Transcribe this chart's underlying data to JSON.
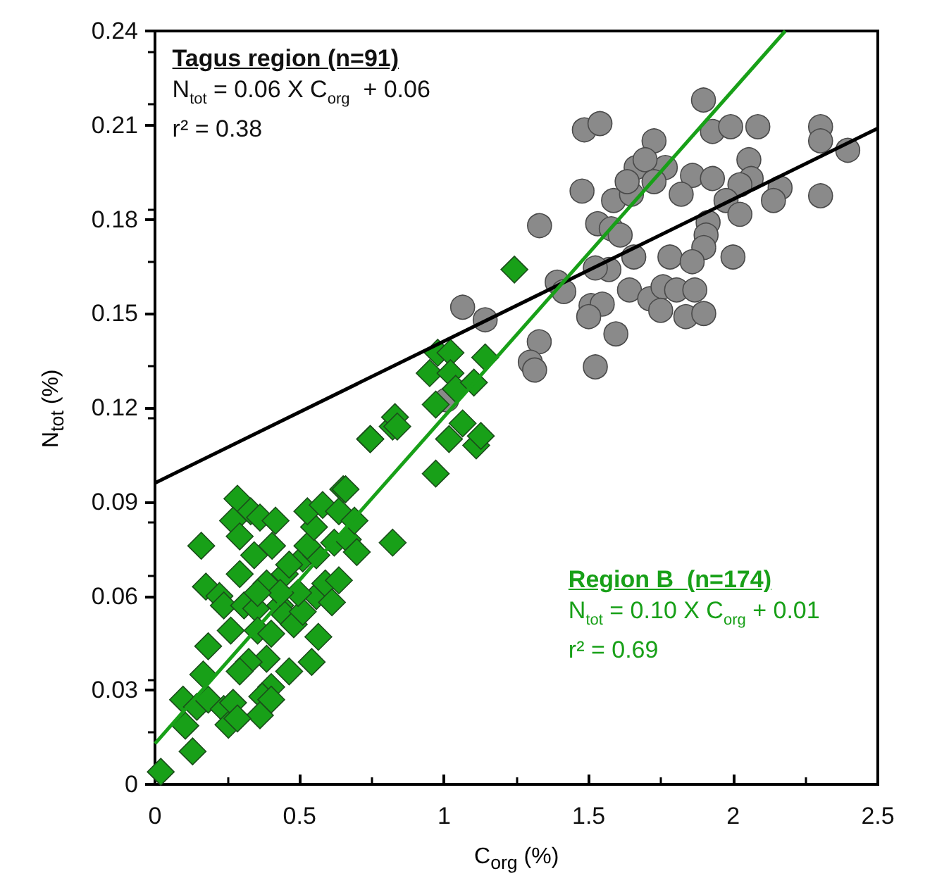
{
  "chart_data": {
    "type": "scatter",
    "xlabel": "C$_{org}$ (%)",
    "ylabel": "N$_{tot}$ (%)",
    "xlim": [
      0,
      2.5
    ],
    "xticks": [
      0,
      0.5,
      1,
      1.5,
      2,
      2.5
    ],
    "ylim": [
      0,
      0.24
    ],
    "yticks": [
      0,
      0.03,
      0.06,
      0.09,
      0.12,
      0.15,
      0.18,
      0.21,
      0.24
    ],
    "grid": false,
    "annotations": [
      "Tagus region (n=91)",
      "N$_{tot}$ = 0.06 X C$_{org}$  + 0.06",
      "r² = 0.38",
      "Region B  (n=174)",
      "N$_{tot}$ = 0.10 X C$_{org}$ + 0.01",
      "r² = 0.69"
    ],
    "series": [
      {
        "marker": "circle",
        "color": "#8a8a8a",
        "x": [
          1.33,
          1.391,
          1.064,
          1.142,
          1.329,
          1.298,
          1.313,
          1.009,
          1.897,
          1.485,
          1.539,
          1.928,
          1.991,
          2.085,
          2.302,
          2.302,
          2.396,
          1.726,
          1.664,
          1.765,
          1.695,
          1.477,
          1.586,
          1.648,
          1.633,
          1.726,
          1.859,
          1.928,
          2.054,
          2.062,
          2.023,
          2.162,
          2.139,
          1.975,
          2.302,
          1.82,
          1.531,
          1.578,
          1.609,
          2.023,
          1.913,
          1.906,
          1.898,
          1.781,
          1.858,
          1.999,
          1.656,
          1.57,
          1.523,
          1.414,
          1.641,
          1.711,
          1.757,
          1.804,
          1.867,
          1.749,
          1.836,
          1.898,
          1.508,
          1.547,
          1.5,
          1.594,
          1.523
        ],
        "values": [
          0.178,
          0.16,
          0.152,
          0.148,
          0.141,
          0.1345,
          0.132,
          0.1225,
          0.218,
          0.2085,
          0.2105,
          0.208,
          0.2095,
          0.2095,
          0.2095,
          0.205,
          0.202,
          0.205,
          0.1965,
          0.1965,
          0.199,
          0.189,
          0.186,
          0.188,
          0.192,
          0.192,
          0.194,
          0.193,
          0.199,
          0.193,
          0.191,
          0.19,
          0.186,
          0.186,
          0.1875,
          0.188,
          0.1786,
          0.177,
          0.175,
          0.1816,
          0.179,
          0.175,
          0.171,
          0.168,
          0.1665,
          0.168,
          0.168,
          0.164,
          0.1645,
          0.157,
          0.1575,
          0.1547,
          0.1585,
          0.1575,
          0.1575,
          0.151,
          0.149,
          0.15,
          0.1525,
          0.153,
          0.149,
          0.1435,
          0.133
        ]
      },
      {
        "marker": "diamond",
        "color": "#18a018",
        "x": [
          0.02,
          0.13,
          0.105,
          0.097,
          0.145,
          0.167,
          0.184,
          0.16,
          0.176,
          0.184,
          0.238,
          0.254,
          0.27,
          0.285,
          0.27,
          0.293,
          0.331,
          0.363,
          0.417,
          0.293,
          0.262,
          0.223,
          0.238,
          0.343,
          0.405,
          0.308,
          0.35,
          0.386,
          0.449,
          0.433,
          0.355,
          0.402,
          0.449,
          0.48,
          0.386,
          0.324,
          0.293,
          0.402,
          0.464,
          0.371,
          0.402,
          0.363,
          0.285,
          0.542,
          0.565,
          0.511,
          0.558,
          0.495,
          0.589,
          0.612,
          0.636,
          0.511,
          0.464,
          0.558,
          0.527,
          0.55,
          0.527,
          0.58,
          0.636,
          0.62,
          0.667,
          0.698,
          0.69,
          0.651,
          0.744,
          0.822,
          0.822,
          0.433,
          0.355,
          1.243,
          0.978,
          1.022,
          0.95,
          1.022,
          1.04,
          1.103,
          1.142,
          0.971,
          0.83,
          0.838,
          0.745,
          1.064,
          1.017,
          1.111,
          1.127,
          0.971,
          0.659
        ],
        "values": [
          0.004,
          0.0105,
          0.0187,
          0.027,
          0.0247,
          0.035,
          0.044,
          0.076,
          0.063,
          0.027,
          0.024,
          0.019,
          0.026,
          0.091,
          0.084,
          0.079,
          0.087,
          0.085,
          0.084,
          0.067,
          0.049,
          0.06,
          0.057,
          0.073,
          0.076,
          0.057,
          0.056,
          0.064,
          0.067,
          0.057,
          0.049,
          0.048,
          0.054,
          0.051,
          0.04,
          0.039,
          0.036,
          0.031,
          0.036,
          0.028,
          0.027,
          0.022,
          0.021,
          0.039,
          0.047,
          0.055,
          0.06,
          0.061,
          0.064,
          0.058,
          0.065,
          0.072,
          0.07,
          0.073,
          0.076,
          0.082,
          0.087,
          0.089,
          0.087,
          0.077,
          0.078,
          0.074,
          0.084,
          0.094,
          0.11,
          0.114,
          0.077,
          0.061,
          0.061,
          0.164,
          0.1375,
          0.1375,
          0.131,
          0.131,
          0.126,
          0.128,
          0.136,
          0.121,
          0.117,
          0.114,
          0.11,
          0.115,
          0.11,
          0.108,
          0.111,
          0.099,
          0.094
        ]
      },
      {
        "type": "line",
        "marker": "none",
        "line_style": "solid",
        "color": "#000000",
        "x": [
          0,
          2.5
        ],
        "values": [
          0.096,
          0.209
        ]
      },
      {
        "type": "line",
        "marker": "none",
        "line_style": "solid",
        "color": "#18a018",
        "x": [
          0,
          2.18
        ],
        "values": [
          0.013,
          0.24
        ]
      }
    ]
  }
}
